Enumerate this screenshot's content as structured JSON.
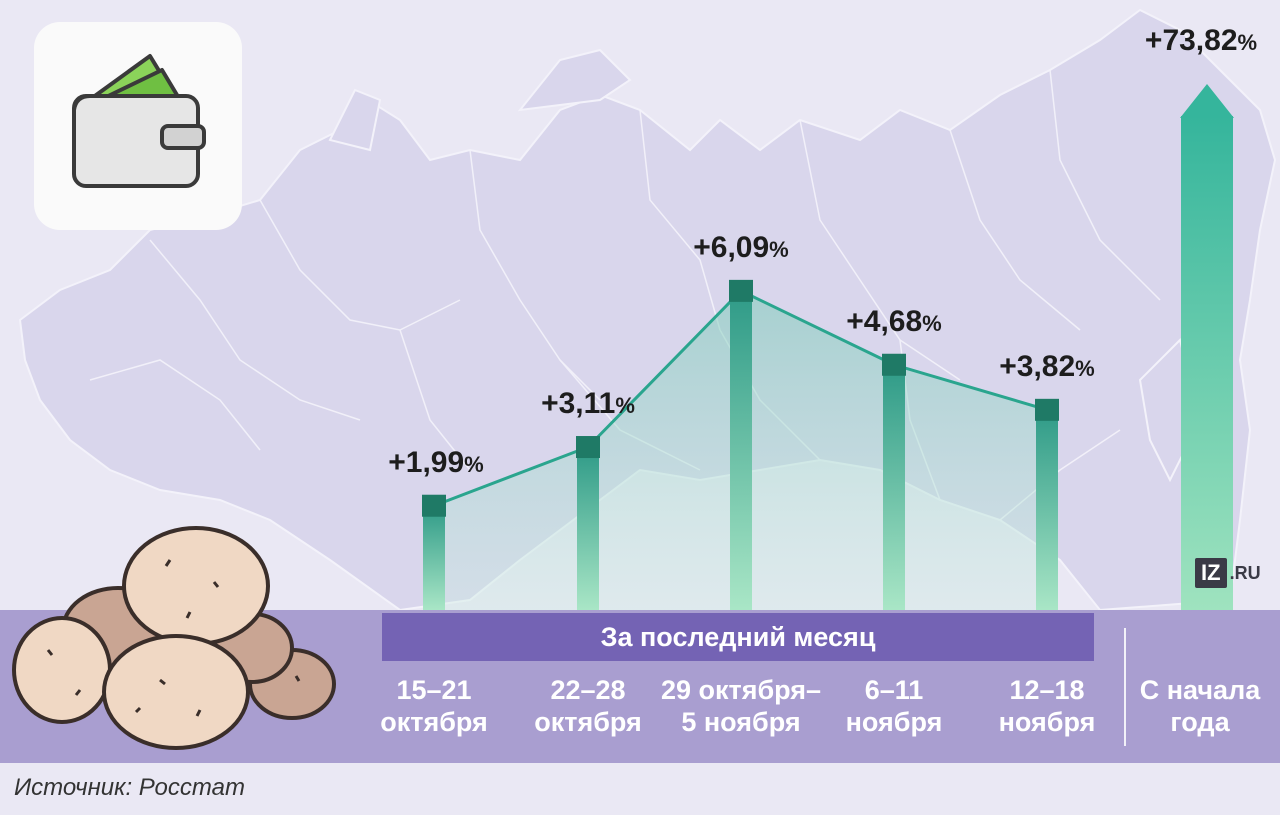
{
  "chart_data": {
    "type": "bar",
    "group_label": "За последний месяц",
    "categories": [
      [
        "15–21",
        "октября"
      ],
      [
        "22–28",
        "октября"
      ],
      [
        "29 октября–",
        "5 ноября"
      ],
      [
        "6–11",
        "ноября"
      ],
      [
        "12–18",
        "ноября"
      ]
    ],
    "values": [
      1.99,
      3.11,
      6.09,
      4.68,
      3.82
    ],
    "value_labels": [
      "+1,99",
      "+3,11",
      "+6,09",
      "+4,68",
      "+3,82"
    ],
    "ylim": [
      0,
      6.5
    ],
    "total": {
      "category": [
        "С начала",
        "года"
      ],
      "value": 73.82,
      "value_label": "+73,82"
    },
    "unit": "%",
    "connect_line": true
  },
  "source": "Источник: Росстат",
  "logo": {
    "mark": "IZ",
    "domain": ".RU"
  },
  "icons": [
    "wallet-icon",
    "potatoes-illustration",
    "russia-map-background"
  ],
  "colors": {
    "background": "#eae8f4",
    "map": "#d9d6ec",
    "bar_top": "#2e9a87",
    "bar_bottom": "#a9e6c6",
    "cap": "#1f7a66",
    "band": "#a99ed0",
    "subband": "#7463b4",
    "area": "#9fd6cb"
  }
}
